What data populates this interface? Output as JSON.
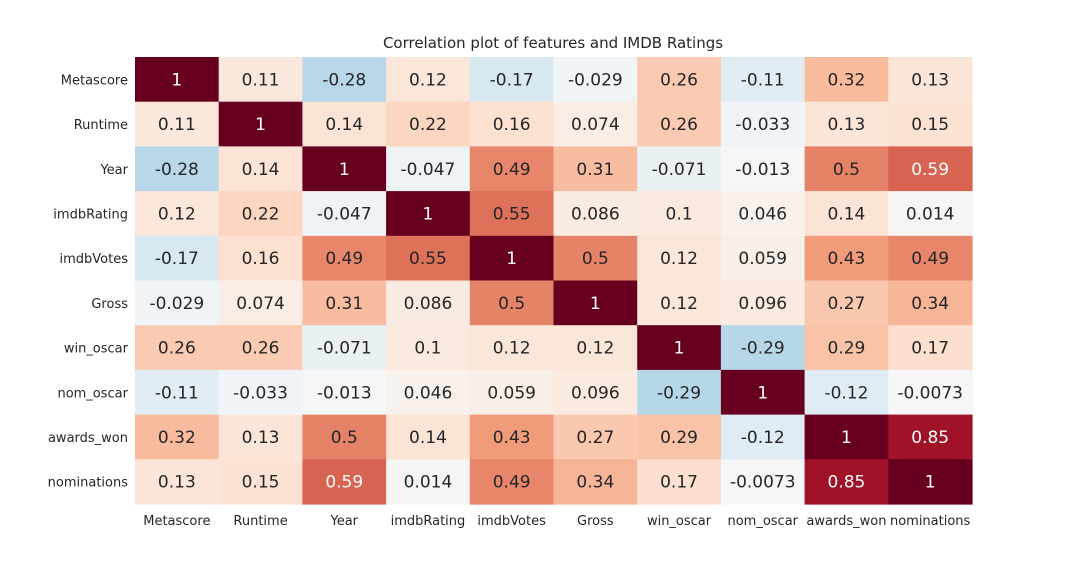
{
  "chart_data": {
    "type": "heatmap",
    "title": "Correlation plot of features and IMDB Ratings",
    "xlabel": "",
    "ylabel": "",
    "grid": false,
    "legend": "none",
    "colormap": "RdBu_r",
    "color_range": [
      -1,
      1
    ],
    "row_labels": [
      "Metascore",
      "Runtime",
      "Year",
      "imdbRating",
      "imdbVotes",
      "Gross",
      "win_oscar",
      "nom_oscar",
      "awards_won",
      "nominations"
    ],
    "col_labels": [
      "Metascore",
      "Runtime",
      "Year",
      "imdbRating",
      "imdbVotes",
      "Gross",
      "win_oscar",
      "nom_oscar",
      "awards_won",
      "nominations"
    ],
    "values": [
      [
        1,
        0.11,
        -0.28,
        0.12,
        -0.17,
        -0.029,
        0.26,
        -0.11,
        0.32,
        0.13
      ],
      [
        0.11,
        1,
        0.14,
        0.22,
        0.16,
        0.074,
        0.26,
        -0.033,
        0.13,
        0.15
      ],
      [
        -0.28,
        0.14,
        1,
        -0.047,
        0.49,
        0.31,
        -0.071,
        -0.013,
        0.5,
        0.59
      ],
      [
        0.12,
        0.22,
        -0.047,
        1,
        0.55,
        0.086,
        0.1,
        0.046,
        0.14,
        0.014
      ],
      [
        -0.17,
        0.16,
        0.49,
        0.55,
        1,
        0.5,
        0.12,
        0.059,
        0.43,
        0.49
      ],
      [
        -0.029,
        0.074,
        0.31,
        0.086,
        0.5,
        1,
        0.12,
        0.096,
        0.27,
        0.34
      ],
      [
        0.26,
        0.26,
        -0.071,
        0.1,
        0.12,
        0.12,
        1,
        -0.29,
        0.29,
        0.17
      ],
      [
        -0.11,
        -0.033,
        -0.013,
        0.046,
        0.059,
        0.096,
        -0.29,
        1,
        -0.12,
        -0.0073
      ],
      [
        0.32,
        0.13,
        0.5,
        0.14,
        0.43,
        0.27,
        0.29,
        -0.12,
        1,
        0.85
      ],
      [
        0.13,
        0.15,
        0.59,
        0.014,
        0.49,
        0.34,
        0.17,
        -0.0073,
        0.85,
        1
      ]
    ]
  }
}
